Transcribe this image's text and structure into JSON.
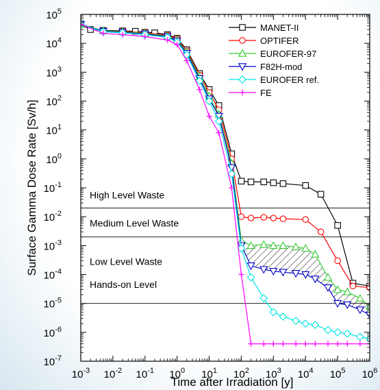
{
  "chart_data": {
    "type": "line",
    "xlabel": "Time after Irradiation [y]",
    "ylabel": "Surface Gamma Dose Rate [Sv/h]",
    "xscale": "log",
    "yscale": "log",
    "xlim": [
      0.001,
      1000000
    ],
    "ylim": [
      1e-07,
      100000
    ],
    "x_ticks": [
      {
        "base": "10",
        "exp": "-3",
        "value": 0.001
      },
      {
        "base": "10",
        "exp": "-2",
        "value": 0.01
      },
      {
        "base": "10",
        "exp": "-1",
        "value": 0.1
      },
      {
        "base": "10",
        "exp": "0",
        "value": 1
      },
      {
        "base": "10",
        "exp": "1",
        "value": 10
      },
      {
        "base": "10",
        "exp": "2",
        "value": 100
      },
      {
        "base": "10",
        "exp": "3",
        "value": 1000
      },
      {
        "base": "10",
        "exp": "4",
        "value": 10000
      },
      {
        "base": "10",
        "exp": "5",
        "value": 100000
      },
      {
        "base": "10",
        "exp": "6",
        "value": 1000000
      }
    ],
    "y_ticks": [
      {
        "base": "10",
        "exp": "-7",
        "value": 1e-07
      },
      {
        "base": "10",
        "exp": "-6",
        "value": 1e-06
      },
      {
        "base": "10",
        "exp": "-5",
        "value": 1e-05
      },
      {
        "base": "10",
        "exp": "-4",
        "value": 0.0001
      },
      {
        "base": "10",
        "exp": "-3",
        "value": 0.001
      },
      {
        "base": "10",
        "exp": "-2",
        "value": 0.01
      },
      {
        "base": "10",
        "exp": "-1",
        "value": 0.1
      },
      {
        "base": "10",
        "exp": "0",
        "value": 1
      },
      {
        "base": "10",
        "exp": "1",
        "value": 10
      },
      {
        "base": "10",
        "exp": "2",
        "value": 100
      },
      {
        "base": "10",
        "exp": "3",
        "value": 1000
      },
      {
        "base": "10",
        "exp": "4",
        "value": 10000
      },
      {
        "base": "10",
        "exp": "5",
        "value": 100000
      }
    ],
    "zones": [
      {
        "label": "High Level Waste"
      },
      {
        "label": "Medium Level Waste"
      },
      {
        "label": "Low Level Waste"
      },
      {
        "label": "Hands-on Level"
      }
    ],
    "thresholds": [
      0.02,
      0.002,
      1e-05
    ],
    "legend_position": "top-right",
    "series": [
      {
        "name": "MANET-II",
        "color": "#000000",
        "marker": "square",
        "points": [
          [
            0.001,
            45000
          ],
          [
            0.002,
            30000
          ],
          [
            0.005,
            28000
          ],
          [
            0.02,
            27000
          ],
          [
            0.05,
            26000
          ],
          [
            0.1,
            24000
          ],
          [
            0.2,
            23000
          ],
          [
            0.5,
            20000
          ],
          [
            1,
            15000
          ],
          [
            2,
            6000
          ],
          [
            5,
            900
          ],
          [
            10,
            250
          ],
          [
            20,
            70
          ],
          [
            50,
            1.5
          ],
          [
            100,
            0.17
          ],
          [
            200,
            0.16
          ],
          [
            500,
            0.16
          ],
          [
            1000,
            0.15
          ],
          [
            2000,
            0.14
          ],
          [
            10000,
            0.12
          ],
          [
            30000,
            0.06
          ],
          [
            100000,
            0.005
          ],
          [
            300000,
            5e-05
          ],
          [
            1000000,
            4e-05
          ]
        ]
      },
      {
        "name": "OPTIFER",
        "color": "#ff0000",
        "marker": "circle",
        "points": [
          [
            0.001,
            45000
          ],
          [
            0.005,
            27000
          ],
          [
            0.02,
            26000
          ],
          [
            0.1,
            23000
          ],
          [
            0.5,
            19000
          ],
          [
            1,
            14000
          ],
          [
            2,
            5500
          ],
          [
            5,
            800
          ],
          [
            10,
            200
          ],
          [
            20,
            50
          ],
          [
            50,
            1.0
          ],
          [
            100,
            0.01
          ],
          [
            200,
            0.009
          ],
          [
            500,
            0.0095
          ],
          [
            1000,
            0.009
          ],
          [
            2000,
            0.0085
          ],
          [
            10000,
            0.008
          ],
          [
            30000,
            0.003
          ],
          [
            100000,
            0.0003
          ],
          [
            300000,
            4e-05
          ],
          [
            1000000,
            3.5e-05
          ]
        ]
      },
      {
        "name": "EUROFER-97",
        "color": "#33cc33",
        "marker": "triangle",
        "points": [
          [
            0.001,
            45000
          ],
          [
            0.005,
            27000
          ],
          [
            0.02,
            25000
          ],
          [
            0.1,
            22000
          ],
          [
            0.5,
            18000
          ],
          [
            1,
            13000
          ],
          [
            2,
            5000
          ],
          [
            5,
            700
          ],
          [
            10,
            150
          ],
          [
            20,
            35
          ],
          [
            50,
            0.7
          ],
          [
            100,
            0.0015
          ],
          [
            200,
            0.001
          ],
          [
            500,
            0.0011
          ],
          [
            1000,
            0.001
          ],
          [
            2000,
            0.001
          ],
          [
            5000,
            0.0009
          ],
          [
            10000,
            0.0008
          ],
          [
            20000,
            0.0005
          ],
          [
            50000,
            8e-05
          ],
          [
            100000,
            3e-05
          ],
          [
            200000,
            2.5e-05
          ],
          [
            500000,
            1.5e-05
          ],
          [
            1000000,
            8e-06
          ]
        ]
      },
      {
        "name": "F82H-mod",
        "color": "#0000cc",
        "marker": "triangle-down",
        "points": [
          [
            0.001,
            45000
          ],
          [
            0.005,
            26000
          ],
          [
            0.02,
            24000
          ],
          [
            0.1,
            21000
          ],
          [
            0.5,
            17000
          ],
          [
            1,
            12000
          ],
          [
            2,
            4500
          ],
          [
            5,
            600
          ],
          [
            10,
            120
          ],
          [
            20,
            30
          ],
          [
            50,
            0.5
          ],
          [
            100,
            0.001
          ],
          [
            200,
            0.0002
          ],
          [
            500,
            0.00015
          ],
          [
            1000,
            0.00013
          ],
          [
            2000,
            0.00012
          ],
          [
            5000,
            0.00011
          ],
          [
            10000,
            0.0001
          ],
          [
            20000,
            7e-05
          ],
          [
            50000,
            3.5e-05
          ],
          [
            100000,
            1e-05
          ],
          [
            200000,
            9e-06
          ],
          [
            500000,
            6e-06
          ],
          [
            1000000,
            4e-06
          ]
        ]
      },
      {
        "name": "EUROFER ref.",
        "color": "#00e5e5",
        "marker": "diamond",
        "points": [
          [
            0.001,
            45000
          ],
          [
            0.005,
            25000
          ],
          [
            0.02,
            23000
          ],
          [
            0.1,
            20000
          ],
          [
            0.5,
            16000
          ],
          [
            1,
            11000
          ],
          [
            2,
            4000
          ],
          [
            5,
            500
          ],
          [
            10,
            100
          ],
          [
            20,
            20
          ],
          [
            50,
            0.3
          ],
          [
            100,
            0.0008
          ],
          [
            200,
            8e-05
          ],
          [
            500,
            1.5e-05
          ],
          [
            1000,
            5e-06
          ],
          [
            2000,
            3.5e-06
          ],
          [
            5000,
            2.5e-06
          ],
          [
            10000,
            2e-06
          ],
          [
            20000,
            1.8e-06
          ],
          [
            50000,
            1.2e-06
          ],
          [
            100000,
            1e-06
          ],
          [
            200000,
            9e-07
          ],
          [
            500000,
            7e-07
          ],
          [
            1000000,
            6e-07
          ]
        ]
      },
      {
        "name": "FE",
        "color": "#ff00ff",
        "marker": "plus",
        "points": [
          [
            0.001,
            45000
          ],
          [
            0.005,
            22000
          ],
          [
            0.02,
            20000
          ],
          [
            0.1,
            17000
          ],
          [
            0.5,
            13000
          ],
          [
            1,
            9000
          ],
          [
            2,
            2500
          ],
          [
            5,
            250
          ],
          [
            10,
            30
          ],
          [
            20,
            8
          ],
          [
            50,
            0.1
          ],
          [
            100,
            0.0001
          ],
          [
            200,
            4e-07
          ],
          [
            500,
            4e-07
          ],
          [
            1000,
            4e-07
          ],
          [
            2000,
            4e-07
          ],
          [
            5000,
            4e-07
          ],
          [
            10000,
            4e-07
          ],
          [
            20000,
            4e-07
          ],
          [
            50000,
            4e-07
          ],
          [
            100000,
            4e-07
          ],
          [
            200000,
            4e-07
          ],
          [
            500000,
            4e-07
          ],
          [
            1000000,
            4e-07
          ]
        ]
      }
    ]
  }
}
